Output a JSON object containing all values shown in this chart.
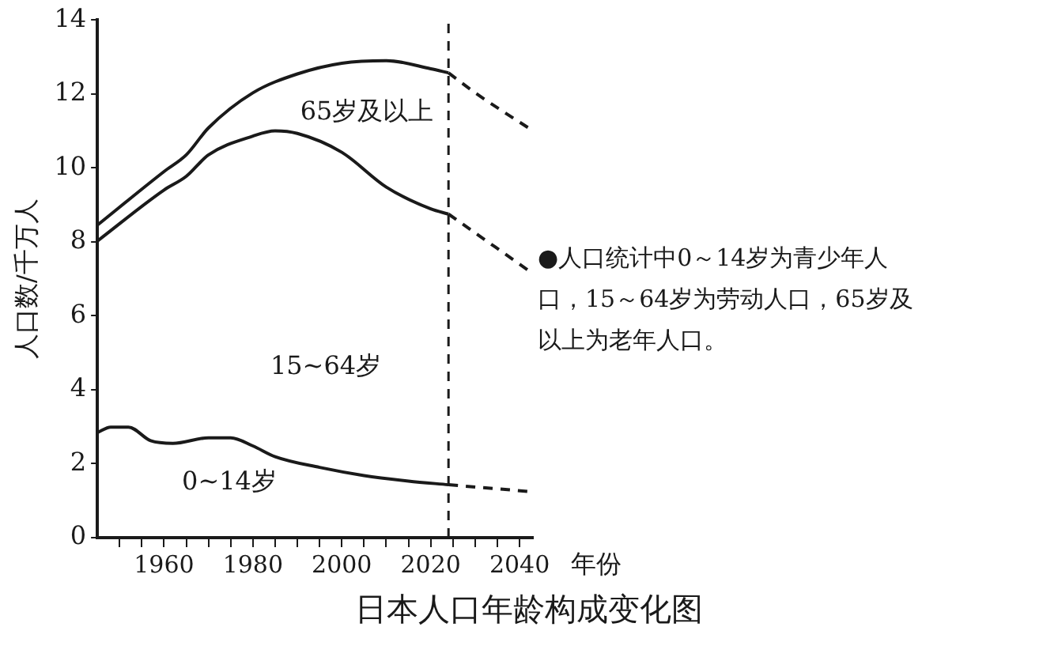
{
  "chart_data": {
    "type": "line",
    "title": "日本人口年龄构成变化图",
    "xlabel": "年份",
    "ylabel": "人口数/千万人",
    "xlim": [
      1945,
      2043
    ],
    "ylim": [
      0,
      14
    ],
    "xticks": [
      {
        "value": 1950,
        "label": null
      },
      {
        "value": 1955,
        "label": null
      },
      1960,
      {
        "value": 1965,
        "label": null
      },
      {
        "value": 1970,
        "label": null
      },
      {
        "value": 1975,
        "label": null
      },
      1980,
      {
        "value": 1985,
        "label": null
      },
      {
        "value": 1990,
        "label": null
      },
      {
        "value": 1995,
        "label": null
      },
      2000,
      {
        "value": 2005,
        "label": null
      },
      {
        "value": 2010,
        "label": null
      },
      {
        "value": 2015,
        "label": null
      },
      2020,
      {
        "value": 2025,
        "label": null
      },
      {
        "value": 2030,
        "label": null
      },
      {
        "value": 2035,
        "label": null
      },
      2040
    ],
    "yticks": [
      0,
      2,
      4,
      6,
      8,
      10,
      12,
      14
    ],
    "grid": false,
    "legend": false,
    "marker": "none",
    "series": [
      {
        "color": "#1a1a1a",
        "line_style": "solid",
        "x": [
          1945,
          1960,
          1965,
          1970,
          1980,
          1990,
          2000,
          2010,
          2020,
          2024
        ],
        "values": [
          8.45,
          9.9,
          10.35,
          11.08,
          12.03,
          12.54,
          12.83,
          12.9,
          12.68,
          12.57
        ]
      },
      {
        "color": "#1a1a1a",
        "line_style": "solid",
        "x": [
          1945,
          1960,
          1965,
          1970,
          1980,
          1985,
          1990,
          2000,
          2010,
          2020,
          2024
        ],
        "values": [
          8.02,
          9.4,
          9.77,
          10.35,
          10.86,
          11.0,
          10.93,
          10.42,
          9.48,
          8.89,
          8.75
        ]
      },
      {
        "color": "#1a1a1a",
        "line_style": "solid",
        "x": [
          1945,
          1948,
          1952,
          1957,
          1962,
          1970,
          1975,
          1980,
          1985,
          1995,
          2005,
          2015,
          2024
        ],
        "values": [
          2.84,
          2.99,
          2.99,
          2.62,
          2.55,
          2.7,
          2.7,
          2.48,
          2.19,
          1.9,
          1.68,
          1.53,
          1.43
        ]
      },
      {
        "color": "#1a1a1a",
        "line_style": "dashed",
        "x": [
          2024,
          2030,
          2043
        ],
        "values": [
          12.57,
          12.03,
          11.0
        ]
      },
      {
        "color": "#1a1a1a",
        "line_style": "dashed",
        "x": [
          2024,
          2043
        ],
        "values": [
          8.75,
          7.14
        ]
      },
      {
        "color": "#1a1a1a",
        "line_style": "dashed",
        "x": [
          2024,
          2043
        ],
        "values": [
          1.43,
          1.24
        ]
      }
    ],
    "ref_lines": [
      {
        "axis": "x",
        "value": 2024,
        "label": null,
        "color": "#1a1a1a",
        "line_style": "dashed"
      }
    ],
    "annotations": [
      "65岁及以上",
      "15~64岁",
      "0~14岁",
      "●人口统计中0～14岁为青少年人口，15～64岁为劳动人口，65岁及以上为老年人口。"
    ]
  }
}
